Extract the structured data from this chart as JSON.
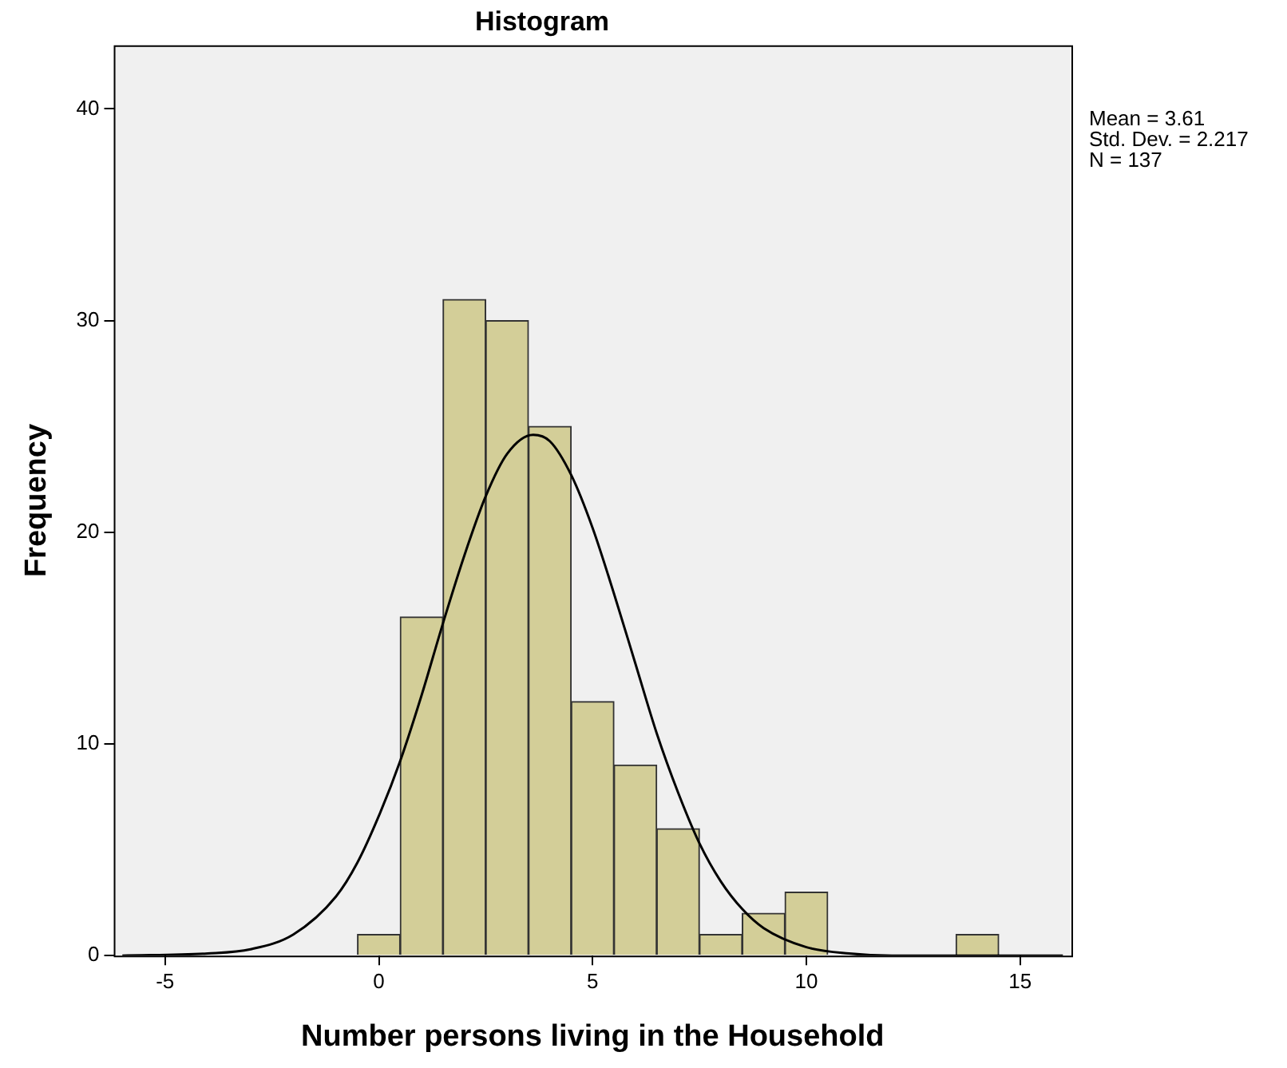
{
  "chart_data": {
    "type": "histogram",
    "title": "Histogram",
    "xlabel": "Number persons living in the Household",
    "ylabel": "Frequency",
    "bins": [
      -0.5,
      0.5,
      1.5,
      2.5,
      3.5,
      4.5,
      5.5,
      6.5,
      7.5,
      8.5,
      9.5,
      10.5,
      11.5,
      12.5,
      13.5,
      14.5
    ],
    "values": [
      1,
      16,
      31,
      30,
      25,
      12,
      9,
      6,
      1,
      2,
      3,
      0,
      0,
      0,
      1
    ],
    "color": "#d3ce98",
    "series": [
      {
        "type": "line",
        "color": "#000000",
        "x": [
          -6,
          -4,
          -3,
          -2,
          -1,
          -0.5,
          0,
          0.5,
          1,
          1.5,
          2,
          2.5,
          3,
          3.61,
          4,
          4.5,
          5,
          5.5,
          6,
          6.5,
          7,
          7.5,
          8,
          8.5,
          9,
          10,
          11,
          12,
          14,
          16
        ],
        "values": [
          0,
          0.1,
          0.3,
          1.0,
          2.8,
          4.4,
          6.6,
          9.2,
          12.3,
          15.7,
          18.9,
          21.7,
          23.7,
          24.6,
          24.3,
          22.7,
          20.2,
          17.1,
          13.8,
          10.5,
          7.7,
          5.3,
          3.5,
          2.2,
          1.3,
          0.4,
          0.1,
          0,
          0,
          0
        ]
      }
    ],
    "xlim": [
      -6.2,
      16.2
    ],
    "xticks": [
      -5,
      0,
      5,
      10,
      15
    ],
    "ylim": [
      0,
      43
    ],
    "yticks": [
      0,
      10,
      20,
      30,
      40
    ],
    "grid": false,
    "legend": false,
    "marker": "none",
    "annotations": [
      "Mean = 3.61",
      "Std. Dev. = 2.217",
      "N = 137"
    ]
  }
}
